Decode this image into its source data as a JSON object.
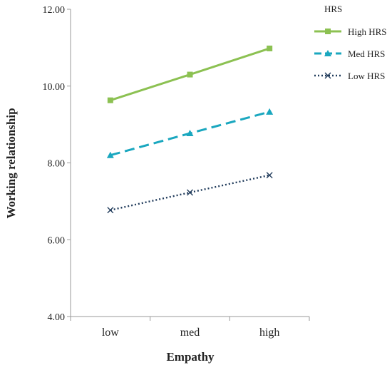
{
  "chart_data": {
    "type": "line",
    "xlabel": "Empathy",
    "ylabel": "Working relationship",
    "categories": [
      "low",
      "med",
      "high"
    ],
    "yticks": [
      "4.00",
      "6.00",
      "8.00",
      "10.00",
      "12.00"
    ],
    "ylim": [
      4,
      12
    ],
    "grid": false,
    "legend_title": "HRS",
    "legend_position": "top-right",
    "series": [
      {
        "name": "High HRS",
        "values": [
          9.63,
          10.3,
          10.98
        ],
        "color": "#8cc152",
        "line_style": "solid",
        "marker": "square"
      },
      {
        "name": "Med HRS",
        "values": [
          8.2,
          8.77,
          9.33
        ],
        "color": "#1aa7bf",
        "line_style": "dashed",
        "marker": "triangle"
      },
      {
        "name": "Low HRS",
        "values": [
          6.77,
          7.23,
          7.68
        ],
        "color": "#1f3a5a",
        "line_style": "dotted",
        "marker": "x"
      }
    ]
  }
}
